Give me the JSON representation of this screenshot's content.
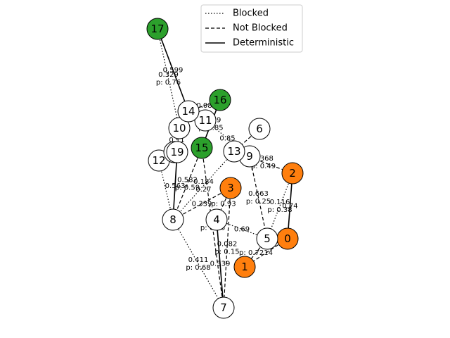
{
  "legend": {
    "items": [
      {
        "label": "Blocked",
        "style": "blocked"
      },
      {
        "label": "Not Blocked",
        "style": "notblocked"
      },
      {
        "label": "Deterministic",
        "style": "deterministic"
      }
    ]
  },
  "colors": {
    "orange": "#ff7f0e",
    "green": "#2ca02c",
    "white": "#ffffff"
  },
  "nodes": [
    {
      "id": "0",
      "color": "orange"
    },
    {
      "id": "1",
      "color": "orange"
    },
    {
      "id": "2",
      "color": "orange"
    },
    {
      "id": "3",
      "color": "orange"
    },
    {
      "id": "4",
      "color": "white"
    },
    {
      "id": "5",
      "color": "white"
    },
    {
      "id": "6",
      "color": "white"
    },
    {
      "id": "7",
      "color": "white"
    },
    {
      "id": "8",
      "color": "white"
    },
    {
      "id": "9",
      "color": "white"
    },
    {
      "id": "10",
      "color": "white"
    },
    {
      "id": "11",
      "color": "white"
    },
    {
      "id": "12",
      "color": "white"
    },
    {
      "id": "13",
      "color": "white"
    },
    {
      "id": "14",
      "color": "white"
    },
    {
      "id": "15",
      "color": "green"
    },
    {
      "id": "16",
      "color": "green"
    },
    {
      "id": "17",
      "color": "green"
    },
    {
      "id": "18",
      "color": "white"
    },
    {
      "id": "19",
      "color": "white"
    }
  ],
  "edges": [
    {
      "from": "17",
      "to": "14",
      "style": "deterministic",
      "label": "0.599"
    },
    {
      "from": "17",
      "to": "10",
      "style": "blocked",
      "label": "0.329\np: 0.76"
    },
    {
      "from": "14",
      "to": "16",
      "style": "notblocked",
      "label": "0.08"
    },
    {
      "from": "16",
      "to": "15",
      "style": "deterministic",
      "label": "0.479\np: 0.85"
    },
    {
      "from": "6",
      "to": "13",
      "style": "notblocked",
      "label": ""
    },
    {
      "from": "13",
      "to": "2",
      "style": "notblocked",
      "label": "0.368\np: 0.49"
    },
    {
      "from": "2",
      "to": "0",
      "style": "deterministic",
      "label": "0.74"
    },
    {
      "from": "2",
      "to": "5",
      "style": "blocked",
      "label": "0.116\np: 0.38"
    },
    {
      "from": "9",
      "to": "5",
      "style": "notblocked",
      "label": "0.663\np: 0.25"
    },
    {
      "from": "0",
      "to": "1",
      "style": "notblocked",
      "label": ""
    },
    {
      "from": "5",
      "to": "1",
      "style": "notblocked",
      "label": "p: 0.7214"
    },
    {
      "from": "5",
      "to": "4",
      "style": "blocked",
      "label": "0.69"
    },
    {
      "from": "3",
      "to": "4",
      "style": "notblocked",
      "label": "p: 0.93"
    },
    {
      "from": "3",
      "to": "8",
      "style": "notblocked",
      "label": "0.339"
    },
    {
      "from": "15",
      "to": "8",
      "style": "notblocked",
      "label": "0.582\np: 0.59"
    },
    {
      "from": "13",
      "to": "8",
      "style": "blocked",
      "label": "0.184\n0.27"
    },
    {
      "from": "19",
      "to": "8",
      "style": "deterministic",
      "label": "0.563"
    },
    {
      "from": "12",
      "to": "8",
      "style": "blocked",
      "label": ""
    },
    {
      "from": "10",
      "to": "18",
      "style": "blocked",
      "label": "0.11"
    },
    {
      "from": "4",
      "to": "7",
      "style": "deterministic",
      "label": "0.339"
    },
    {
      "from": "8",
      "to": "7",
      "style": "blocked",
      "label": "0.411\np: 0.68"
    },
    {
      "from": "3",
      "to": "7",
      "style": "notblocked",
      "label": "0.082\np: 0.15"
    },
    {
      "from": "15",
      "to": "7",
      "style": "notblocked",
      "label": "p: 0.86"
    },
    {
      "from": "11",
      "to": "9",
      "style": "blocked",
      "label": "0.85"
    },
    {
      "from": "14",
      "to": "11",
      "style": "notblocked",
      "label": "0.25"
    }
  ]
}
